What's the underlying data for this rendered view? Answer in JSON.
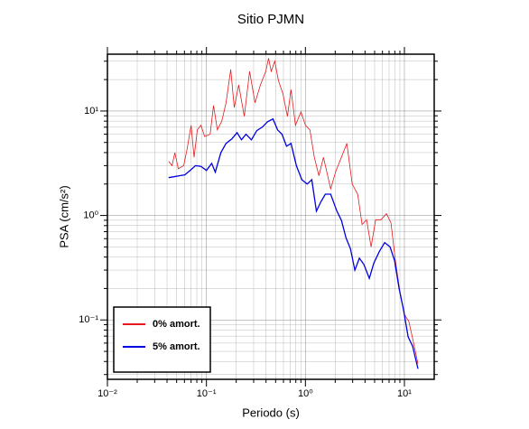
{
  "chart_data": {
    "type": "line",
    "title": "Sitio PJMN",
    "x_label": "Periodo (s)",
    "y_label": "PSA (cm/s²)",
    "log_x": true,
    "log_y": true,
    "grid": true,
    "minor_grid": true,
    "legend_position": "lower left",
    "xlim": [
      0.01,
      20
    ],
    "ylim": [
      0.027,
      35
    ],
    "xticks": [
      {
        "value": 0.01,
        "label": "10⁻²"
      },
      {
        "value": 0.1,
        "label": "10⁻¹"
      },
      {
        "value": 1,
        "label": "10⁰"
      },
      {
        "value": 10,
        "label": "10¹"
      }
    ],
    "yticks": [
      {
        "value": 0.1,
        "label": "10⁻¹"
      },
      {
        "value": 1,
        "label": "10⁰"
      },
      {
        "value": 10,
        "label": "10¹"
      }
    ],
    "series": [
      {
        "name": "0% amort.",
        "color": "#e41a1c",
        "x": [
          0.0415,
          0.045,
          0.048,
          0.052,
          0.059,
          0.064,
          0.07,
          0.075,
          0.081,
          0.088,
          0.096,
          0.109,
          0.118,
          0.129,
          0.143,
          0.158,
          0.176,
          0.191,
          0.212,
          0.241,
          0.273,
          0.31,
          0.351,
          0.398,
          0.424,
          0.451,
          0.491,
          0.534,
          0.593,
          0.658,
          0.716,
          0.794,
          0.901,
          1.0,
          1.11,
          1.23,
          1.37,
          1.52,
          1.8,
          2.04,
          2.31,
          2.62,
          2.97,
          3.37,
          3.74,
          4.15,
          4.61,
          5.12,
          5.8,
          6.58,
          7.31,
          8.11,
          9.01,
          10,
          11.1,
          12.3,
          13.7
        ],
        "values": [
          3.3,
          3.0,
          4.0,
          2.8,
          3.0,
          4.4,
          7.3,
          3.6,
          6.6,
          7.3,
          5.7,
          6.0,
          11.3,
          6.6,
          8.0,
          12,
          25,
          10.8,
          17.8,
          8.9,
          24,
          12,
          17.8,
          24,
          32,
          24,
          30,
          19.6,
          14.6,
          8.9,
          16,
          7.3,
          9.8,
          7.3,
          6.6,
          3.6,
          2.4,
          3.6,
          1.8,
          2.7,
          3.6,
          4.9,
          2.0,
          1.6,
          0.82,
          0.91,
          0.5,
          0.91,
          0.91,
          1.04,
          0.85,
          0.37,
          0.185,
          0.113,
          0.096,
          0.062,
          0.038
        ]
      },
      {
        "name": "5% amort.",
        "color": "#0000e0",
        "x": [
          0.0415,
          0.047,
          0.053,
          0.0605,
          0.0685,
          0.0775,
          0.088,
          0.1,
          0.113,
          0.123,
          0.14,
          0.158,
          0.18,
          0.204,
          0.226,
          0.251,
          0.285,
          0.323,
          0.366,
          0.415,
          0.47,
          0.523,
          0.58,
          0.644,
          0.716,
          0.811,
          0.92,
          1.04,
          1.16,
          1.29,
          1.43,
          1.59,
          1.8,
          2.08,
          2.31,
          2.57,
          2.85,
          3.16,
          3.51,
          3.9,
          4.42,
          4.91,
          5.57,
          6.32,
          7.17,
          7.96,
          8.84,
          9.79,
          10.9,
          12.1,
          13.7
        ],
        "values": [
          2.3,
          2.35,
          2.4,
          2.45,
          2.7,
          3.0,
          2.95,
          2.7,
          3.15,
          2.6,
          4.0,
          4.9,
          5.4,
          6.2,
          5.3,
          6.0,
          5.3,
          6.5,
          7.0,
          7.9,
          8.4,
          6.6,
          6.0,
          4.6,
          4.9,
          3.0,
          2.2,
          2.0,
          2.2,
          1.1,
          1.35,
          1.6,
          1.6,
          1.1,
          0.9,
          0.61,
          0.48,
          0.3,
          0.39,
          0.34,
          0.25,
          0.35,
          0.45,
          0.55,
          0.5,
          0.37,
          0.2,
          0.125,
          0.069,
          0.056,
          0.034
        ]
      }
    ]
  }
}
